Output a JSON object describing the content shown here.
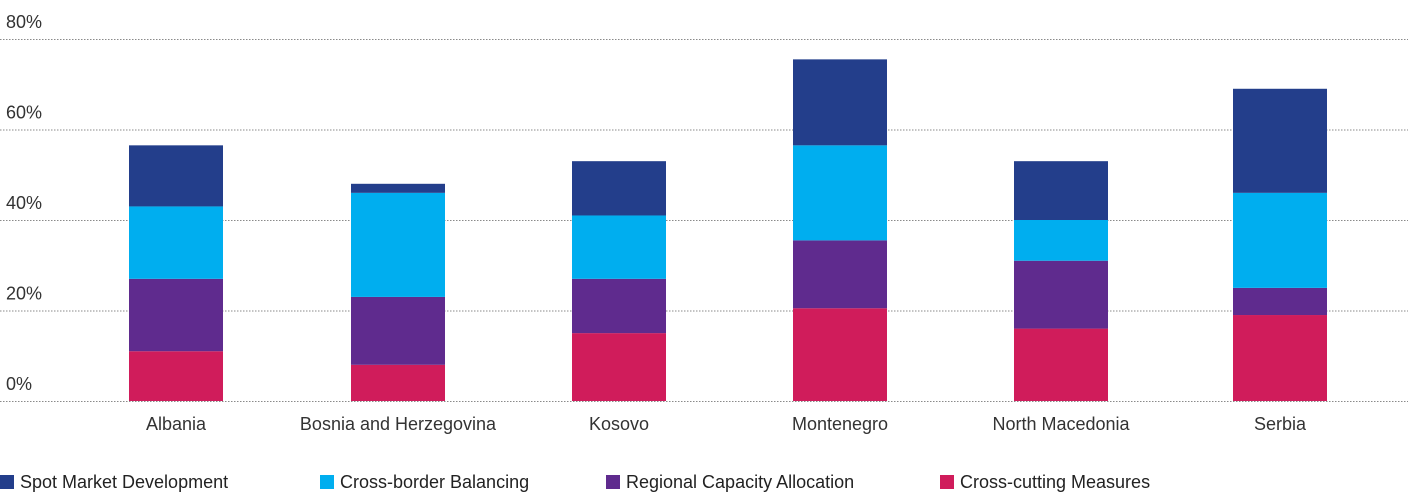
{
  "chart_data": {
    "type": "bar",
    "stacked": true,
    "categories": [
      "Albania",
      "Bosnia and Herzegovina",
      "Kosovo",
      "Montenegro",
      "North Macedonia",
      "Serbia"
    ],
    "series": [
      {
        "name": "Cross-cutting Measures",
        "color": "#d01c5b",
        "values": [
          11,
          8,
          15,
          20.5,
          16,
          19
        ]
      },
      {
        "name": "Regional Capacity Allocation",
        "color": "#5f2b8e",
        "values": [
          16,
          15,
          12,
          15,
          15,
          6
        ]
      },
      {
        "name": "Cross-border Balancing",
        "color": "#00aeef",
        "values": [
          16,
          23,
          14,
          21,
          9,
          21
        ]
      },
      {
        "name": "Spot Market Development",
        "color": "#233e8b",
        "values": [
          13.5,
          2,
          12,
          19,
          13,
          23
        ]
      }
    ],
    "y_ticks": [
      "0%",
      "20%",
      "40%",
      "60%",
      "80%"
    ],
    "ylim": [
      0,
      80
    ],
    "grid": true,
    "legend_position": "bottom",
    "legend_order": [
      "Spot Market Development",
      "Cross-border Balancing",
      "Regional Capacity Allocation",
      "Cross-cutting Measures"
    ]
  }
}
